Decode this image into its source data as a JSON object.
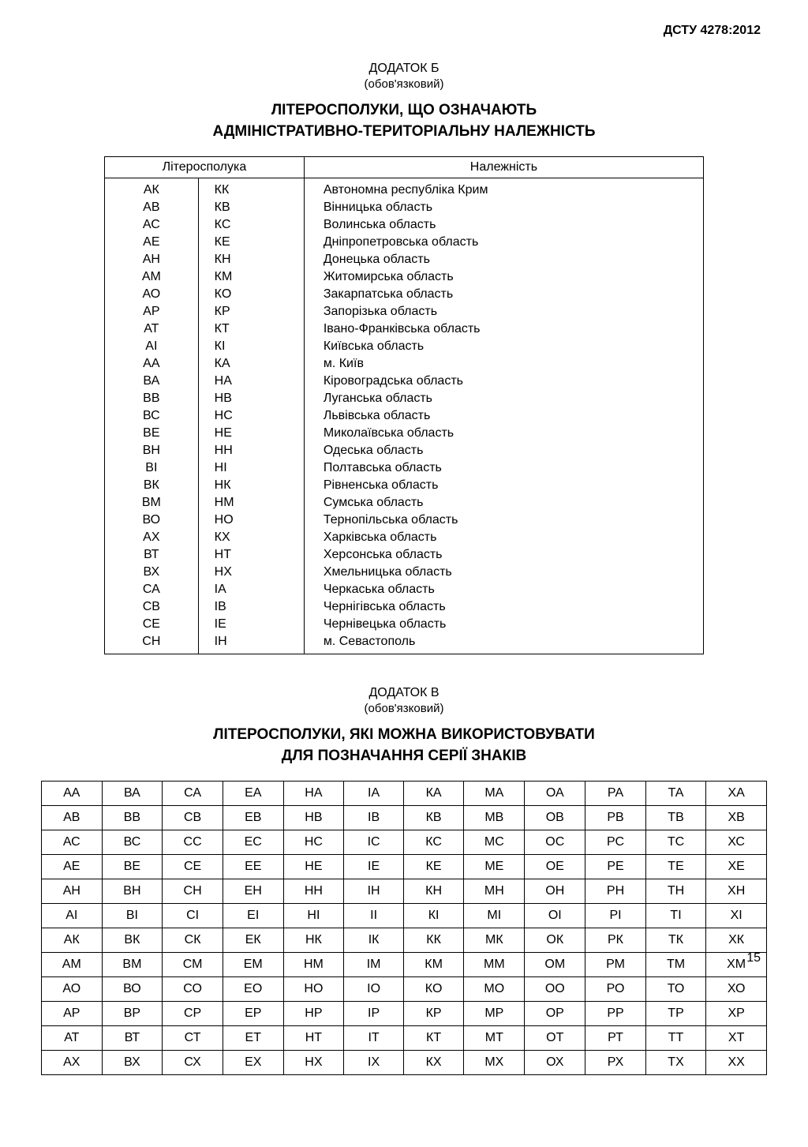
{
  "doc_code": "ДСТУ 4278:2012",
  "appendix_b": {
    "label": "ДОДАТОК Б",
    "note": "(обов'язковий)",
    "title_line1": "ЛІТЕРОСПОЛУКИ, ЩО ОЗНАЧАЮТЬ",
    "title_line2": "АДМІНІСТРАТИВНО-ТЕРИТОРІАЛЬНУ НАЛЕЖНІСТЬ",
    "header_codes": "Літеросполука",
    "header_region": "Належність",
    "rows": [
      {
        "c1": "АК",
        "c2": "КК",
        "region": "Автономна республіка Крим"
      },
      {
        "c1": "АВ",
        "c2": "КВ",
        "region": "Вінницька область"
      },
      {
        "c1": "АС",
        "c2": "КС",
        "region": "Волинська область"
      },
      {
        "c1": "АЕ",
        "c2": "КЕ",
        "region": "Дніпропетровська область"
      },
      {
        "c1": "АН",
        "c2": "КН",
        "region": "Донецька область"
      },
      {
        "c1": "АМ",
        "c2": "КМ",
        "region": "Житомирська область"
      },
      {
        "c1": "АО",
        "c2": "КО",
        "region": "Закарпатська область"
      },
      {
        "c1": "АР",
        "c2": "КР",
        "region": "Запорізька область"
      },
      {
        "c1": "АТ",
        "c2": "КТ",
        "region": "Івано-Франківська область"
      },
      {
        "c1": "АІ",
        "c2": "КІ",
        "region": "Київська область"
      },
      {
        "c1": "АА",
        "c2": "КА",
        "region": "м. Київ"
      },
      {
        "c1": "ВА",
        "c2": "НА",
        "region": "Кіровоградська область"
      },
      {
        "c1": "ВВ",
        "c2": "НВ",
        "region": "Луганська область"
      },
      {
        "c1": "ВС",
        "c2": "НС",
        "region": "Львівська область"
      },
      {
        "c1": "ВЕ",
        "c2": "НЕ",
        "region": "Миколаївська область"
      },
      {
        "c1": "ВН",
        "c2": "НН",
        "region": "Одеська область"
      },
      {
        "c1": "ВІ",
        "c2": "НІ",
        "region": "Полтавська область"
      },
      {
        "c1": "ВК",
        "c2": "НК",
        "region": "Рівненська область"
      },
      {
        "c1": "ВМ",
        "c2": "НМ",
        "region": "Сумська область"
      },
      {
        "c1": "ВО",
        "c2": "НО",
        "region": "Тернопільська область"
      },
      {
        "c1": "АХ",
        "c2": "КХ",
        "region": "Харківська область"
      },
      {
        "c1": "ВТ",
        "c2": "НТ",
        "region": "Херсонська область"
      },
      {
        "c1": "ВХ",
        "c2": "НХ",
        "region": "Хмельницька область"
      },
      {
        "c1": "СА",
        "c2": "ІА",
        "region": "Черкаська область"
      },
      {
        "c1": "СВ",
        "c2": "ІВ",
        "region": "Чернігівська область"
      },
      {
        "c1": "СЕ",
        "c2": "ІЕ",
        "region": "Чернівецька область"
      },
      {
        "c1": "СН",
        "c2": "ІН",
        "region": "м. Севастополь"
      }
    ]
  },
  "appendix_v": {
    "label": "ДОДАТОК В",
    "note": "(обов'язковий)",
    "title_line1": "ЛІТЕРОСПОЛУКИ, ЯКІ МОЖНА ВИКОРИСТОВУВАТИ",
    "title_line2": "ДЛЯ ПОЗНАЧАННЯ СЕРІЇ ЗНАКІВ",
    "grid": [
      [
        "АА",
        "ВА",
        "СА",
        "ЕА",
        "НА",
        "ІА",
        "КА",
        "МА",
        "ОА",
        "РА",
        "ТА",
        "ХА"
      ],
      [
        "АВ",
        "ВВ",
        "СВ",
        "ЕВ",
        "НВ",
        "ІВ",
        "КВ",
        "МВ",
        "ОВ",
        "РВ",
        "ТВ",
        "ХВ"
      ],
      [
        "АС",
        "ВС",
        "СС",
        "ЕС",
        "НС",
        "ІС",
        "КС",
        "МС",
        "ОС",
        "РС",
        "ТС",
        "ХС"
      ],
      [
        "АЕ",
        "ВЕ",
        "СЕ",
        "ЕЕ",
        "НЕ",
        "ІЕ",
        "КЕ",
        "МЕ",
        "ОЕ",
        "РЕ",
        "ТЕ",
        "ХЕ"
      ],
      [
        "АН",
        "ВН",
        "СН",
        "ЕН",
        "НН",
        "ІН",
        "КН",
        "МН",
        "ОН",
        "РН",
        "ТН",
        "ХН"
      ],
      [
        "АІ",
        "ВІ",
        "СІ",
        "ЕІ",
        "НІ",
        "ІІ",
        "КІ",
        "МІ",
        "ОІ",
        "РІ",
        "ТІ",
        "ХІ"
      ],
      [
        "АК",
        "ВК",
        "СК",
        "ЕК",
        "НК",
        "ІК",
        "КК",
        "МК",
        "ОК",
        "РК",
        "ТК",
        "ХК"
      ],
      [
        "АМ",
        "ВМ",
        "СМ",
        "ЕМ",
        "НМ",
        "ІМ",
        "КМ",
        "ММ",
        "ОМ",
        "РМ",
        "ТМ",
        "ХМ"
      ],
      [
        "АО",
        "ВО",
        "СО",
        "ЕО",
        "НО",
        "ІО",
        "КО",
        "МО",
        "ОО",
        "РО",
        "ТО",
        "ХО"
      ],
      [
        "АР",
        "ВР",
        "СР",
        "ЕР",
        "НР",
        "ІР",
        "КР",
        "МР",
        "ОР",
        "РР",
        "ТР",
        "ХР"
      ],
      [
        "АТ",
        "ВТ",
        "СТ",
        "ЕТ",
        "НТ",
        "ІТ",
        "КТ",
        "МТ",
        "ОТ",
        "РТ",
        "ТТ",
        "ХТ"
      ],
      [
        "АХ",
        "ВХ",
        "СХ",
        "ЕХ",
        "НХ",
        "ІХ",
        "КХ",
        "МХ",
        "ОХ",
        "РХ",
        "ТХ",
        "ХХ"
      ]
    ]
  },
  "page_number": "15"
}
